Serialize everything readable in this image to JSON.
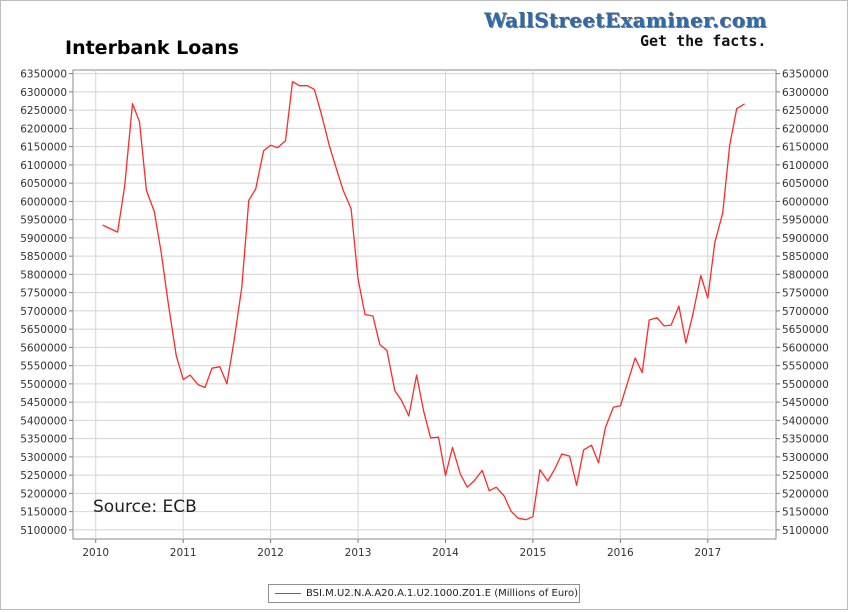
{
  "branding": {
    "site": "WallStreetExaminer.com",
    "tagline": "Get the facts."
  },
  "source_note": "Source: ECB",
  "colors": {
    "series_line": "#ff2a2a",
    "grid": "#d4d4d4",
    "axis": "#777777"
  },
  "chart_data": {
    "type": "line",
    "title": "Interbank Loans",
    "xlabel": "",
    "ylabel": "",
    "xlim": [
      2009.74,
      2017.78
    ],
    "ylim": [
      5075000,
      6360000
    ],
    "x_ticks": [
      2010,
      2011,
      2012,
      2013,
      2014,
      2015,
      2016,
      2017
    ],
    "x_tick_labels": [
      "2010",
      "2011",
      "2012",
      "2013",
      "2014",
      "2015",
      "2016",
      "2017"
    ],
    "y_ticks": [
      5100000,
      5150000,
      5200000,
      5250000,
      5300000,
      5350000,
      5400000,
      5450000,
      5500000,
      5550000,
      5600000,
      5650000,
      5700000,
      5750000,
      5800000,
      5850000,
      5900000,
      5950000,
      6000000,
      6050000,
      6100000,
      6150000,
      6200000,
      6250000,
      6300000,
      6350000
    ],
    "y_tick_labels": [
      "5100000",
      "5150000",
      "5200000",
      "5250000",
      "5300000",
      "5350000",
      "5400000",
      "5450000",
      "5500000",
      "5550000",
      "5600000",
      "5650000",
      "5700000",
      "5750000",
      "5800000",
      "5850000",
      "5900000",
      "5950000",
      "6000000",
      "6050000",
      "6100000",
      "6150000",
      "6200000",
      "6250000",
      "6300000",
      "6350000"
    ],
    "y_axis_both_sides": true,
    "grid": true,
    "legend_position": "bottom-center",
    "series": [
      {
        "name": "BSI.M.U2.N.A.A20.A.1.U2.1000.Z01.E (Millions of Euro)",
        "color": "#ff2a2a",
        "x": [
          2010.08,
          2010.25,
          2010.33,
          2010.42,
          2010.5,
          2010.58,
          2010.67,
          2010.75,
          2010.83,
          2010.92,
          2011.0,
          2011.08,
          2011.17,
          2011.25,
          2011.33,
          2011.42,
          2011.5,
          2011.58,
          2011.67,
          2011.75,
          2011.83,
          2011.92,
          2012.0,
          2012.08,
          2012.17,
          2012.25,
          2012.33,
          2012.42,
          2012.5,
          2012.58,
          2012.67,
          2012.75,
          2012.83,
          2012.92,
          2013.0,
          2013.08,
          2013.17,
          2013.25,
          2013.33,
          2013.42,
          2013.5,
          2013.58,
          2013.67,
          2013.75,
          2013.83,
          2013.92,
          2014.0,
          2014.08,
          2014.17,
          2014.25,
          2014.33,
          2014.42,
          2014.5,
          2014.58,
          2014.67,
          2014.75,
          2014.83,
          2014.92,
          2015.0,
          2015.08,
          2015.17,
          2015.25,
          2015.33,
          2015.42,
          2015.5,
          2015.58,
          2015.67,
          2015.75,
          2015.83,
          2015.92,
          2016.0,
          2016.08,
          2016.17,
          2016.25,
          2016.33,
          2016.42,
          2016.5,
          2016.58,
          2016.67,
          2016.75,
          2016.83,
          2016.92,
          2017.0,
          2017.08,
          2017.17,
          2017.25,
          2017.33,
          2017.42
        ],
        "values": [
          5935000,
          5916000,
          6040000,
          6268000,
          6218000,
          6030000,
          5972000,
          5858000,
          5720000,
          5578000,
          5512000,
          5524000,
          5498000,
          5490000,
          5543000,
          5547000,
          5500000,
          5615000,
          5765000,
          6003000,
          6034000,
          6139000,
          6154000,
          6147000,
          6166000,
          6328000,
          6317000,
          6317000,
          6307000,
          6240000,
          6154000,
          6091000,
          6030000,
          5980000,
          5788000,
          5690000,
          5686000,
          5607000,
          5592000,
          5482000,
          5453000,
          5412000,
          5524000,
          5426000,
          5352000,
          5354000,
          5249000,
          5326000,
          5253000,
          5217000,
          5235000,
          5263000,
          5207000,
          5217000,
          5193000,
          5151000,
          5132000,
          5128000,
          5136000,
          5265000,
          5234000,
          5267000,
          5308000,
          5302000,
          5222000,
          5319000,
          5332000,
          5284000,
          5381000,
          5436000,
          5440000,
          5502000,
          5571000,
          5531000,
          5675000,
          5681000,
          5659000,
          5661000,
          5713000,
          5612000,
          5691000,
          5797000,
          5735000,
          5887000,
          5968000,
          6154000,
          6254000,
          6267000
        ]
      }
    ]
  }
}
